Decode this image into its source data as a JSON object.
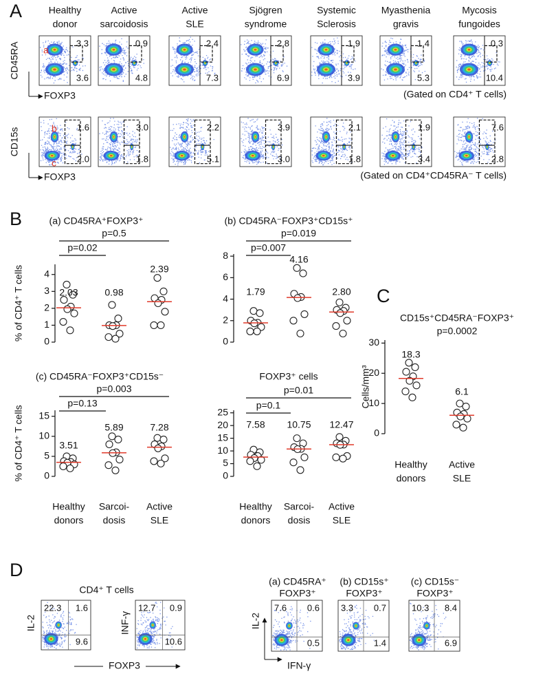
{
  "letters": {
    "a": "A",
    "b": "B",
    "c": "C",
    "d": "D"
  },
  "panel_a": {
    "columns": [
      [
        "Healthy",
        "donor"
      ],
      [
        "Active",
        "sarcoidosis"
      ],
      [
        "Active",
        "SLE"
      ],
      [
        "Sjögren",
        "syndrome"
      ],
      [
        "Systemic",
        "Sclerosis"
      ],
      [
        "Myasthenia",
        "gravis"
      ],
      [
        "Mycosis",
        "fungoides"
      ]
    ],
    "rows": [
      {
        "y_label": "CD45RA",
        "x_label": "FOXP3",
        "gate_labels": [
          "a"
        ],
        "upper": [
          "3.3",
          "0.9",
          "2.4",
          "2.8",
          "1.9",
          "1.4",
          "0.3"
        ],
        "lower": [
          "3.6",
          "4.8",
          "7.3",
          "6.9",
          "3.9",
          "5.3",
          "10.4"
        ],
        "note": "(Gated on CD4⁺ T cells)"
      },
      {
        "y_label": "CD15s",
        "x_label": "FOXP3",
        "gate_labels": [
          "b",
          "c"
        ],
        "upper": [
          "1.6",
          "3.0",
          "2.2",
          "3.9",
          "2.1",
          "1.9",
          "7.6"
        ],
        "lower": [
          "2.0",
          "1.8",
          "5.1",
          "3.0",
          "1.8",
          "3.4",
          "2.8"
        ],
        "note": "(Gated on CD4⁺CD45RA⁻ T cells)"
      }
    ]
  },
  "chart_data": [
    {
      "type": "dot",
      "title": "(a) CD45RA⁺FOXP3⁺",
      "annotations": [
        "p=0.5",
        "p=0.02"
      ],
      "y_label": "% of CD4⁺ T cells",
      "ylim": [
        0,
        4.6
      ],
      "yticks": [
        0,
        1,
        2,
        3,
        4
      ],
      "values": [
        [
          3.4,
          2.8,
          2.5,
          2.1,
          1.95,
          1.7,
          1.2,
          0.7
        ],
        [
          2.2,
          1.4,
          1.0,
          1.0,
          0.95,
          0.5,
          0.3,
          0.2
        ],
        [
          3.8,
          3.0,
          2.6,
          2.5,
          2.3,
          1.8,
          1.0,
          1.0
        ]
      ],
      "medians": [
        2.03,
        0.98,
        2.39
      ],
      "median_labels": [
        "2.03",
        "0.98",
        "2.39"
      ],
      "median_color": "#e03a2a"
    },
    {
      "type": "dot",
      "title": "(b) CD45RA⁻FOXP3⁺CD15s⁺",
      "annotations": [
        "p=0.019",
        "p=0.007"
      ],
      "ylim": [
        0,
        8.2
      ],
      "yticks": [
        0,
        2,
        4,
        6,
        8
      ],
      "values": [
        [
          2.9,
          2.7,
          2.0,
          1.8,
          1.75,
          1.4,
          1.0,
          1.0
        ],
        [
          6.9,
          6.4,
          4.5,
          4.2,
          4.1,
          2.6,
          2.0,
          0.8
        ],
        [
          3.7,
          3.2,
          3.0,
          2.9,
          2.7,
          2.0,
          1.5,
          0.8
        ]
      ],
      "medians": [
        1.79,
        4.16,
        2.8
      ],
      "median_labels": [
        "1.79",
        "4.16",
        "2.80"
      ],
      "median_color": "#e03a2a"
    },
    {
      "type": "dot",
      "title": "(c) CD45RA⁻FOXP3⁺CD15s⁻",
      "annotations": [
        "p=0.003",
        "p=0.13"
      ],
      "y_label": "% of CD4⁺ T cells",
      "ylim": [
        0,
        16.5
      ],
      "yticks": [
        0,
        5,
        10,
        15
      ],
      "categories": [
        [
          "Healthy",
          "donors"
        ],
        [
          "Sarcoi-",
          "dosis"
        ],
        [
          "Active",
          "SLE"
        ]
      ],
      "values": [
        [
          5.0,
          4.5,
          3.8,
          3.6,
          3.4,
          3.0,
          2.5,
          2.0
        ],
        [
          10.0,
          9.2,
          8.0,
          6.0,
          5.8,
          4.2,
          2.8,
          1.5
        ],
        [
          9.6,
          9.2,
          8.0,
          7.5,
          7.0,
          4.5,
          3.8,
          3.2
        ]
      ],
      "medians": [
        3.51,
        5.89,
        7.28
      ],
      "median_labels": [
        "3.51",
        "5.89",
        "7.28"
      ],
      "median_color": "#e03a2a"
    },
    {
      "type": "dot",
      "title": "FOXP3⁺ cells",
      "annotations": [
        "p=0.01",
        "p=0.1"
      ],
      "ylim": [
        0,
        26
      ],
      "yticks": [
        0,
        5,
        10,
        15,
        20,
        25
      ],
      "categories": [
        [
          "Healthy",
          "donors"
        ],
        [
          "Sarcoi-",
          "dosis"
        ],
        [
          "Active",
          "SLE"
        ]
      ],
      "values": [
        [
          10.5,
          9.5,
          8.5,
          8.0,
          7.2,
          6.5,
          6.0,
          4.0
        ],
        [
          15.0,
          13.0,
          11.5,
          10.8,
          10.7,
          7.5,
          5.5,
          2.5
        ],
        [
          15.5,
          14.0,
          13.0,
          12.5,
          12.4,
          8.0,
          7.5,
          7.0
        ]
      ],
      "medians": [
        7.58,
        10.75,
        12.47
      ],
      "median_labels": [
        "7.58",
        "10.75",
        "12.47"
      ],
      "median_color": "#e03a2a"
    },
    {
      "type": "dot",
      "title": "CD15s⁺CD45RA⁻FOXP3⁺",
      "subtitle": "p=0.0002",
      "y_label": "Cells/mm³",
      "ylim": [
        0,
        31
      ],
      "yticks": [
        0,
        10,
        20,
        30
      ],
      "categories": [
        [
          "Healthy",
          "donors"
        ],
        [
          "Active",
          "SLE"
        ]
      ],
      "values": [
        [
          23.5,
          22.0,
          20.5,
          19.0,
          17.5,
          16.0,
          14.0,
          12.0
        ],
        [
          10.0,
          9.0,
          7.0,
          6.5,
          5.7,
          5.0,
          3.0,
          2.0
        ]
      ],
      "medians": [
        18.3,
        6.1
      ],
      "median_labels": [
        "18.3",
        "6.1"
      ],
      "median_color": "#e03a2a"
    }
  ],
  "panel_d": {
    "title": "CD4⁺ T cells",
    "left": [
      {
        "y_label": "IL-2",
        "quadrants": [
          "22.3",
          "1.6",
          "9.6"
        ]
      },
      {
        "y_label": "INF-γ",
        "quadrants": [
          "12.7",
          "0.9",
          "10.6"
        ]
      }
    ],
    "left_x_label": "FOXP3",
    "right": [
      {
        "title": [
          "(a) CD45RA⁺",
          "FOXP3⁺"
        ],
        "quadrants": [
          "7.6",
          "0.6",
          "0.5"
        ]
      },
      {
        "title": [
          "(b) CD15s⁺",
          "FOXP3⁺"
        ],
        "quadrants": [
          "3.3",
          "0.7",
          "1.4"
        ]
      },
      {
        "title": [
          "(c) CD15s⁻",
          "FOXP3⁺"
        ],
        "quadrants": [
          "10.3",
          "8.4",
          "6.9"
        ]
      }
    ],
    "right_y_label": "IL-2",
    "right_x_label": "IFN-γ"
  }
}
